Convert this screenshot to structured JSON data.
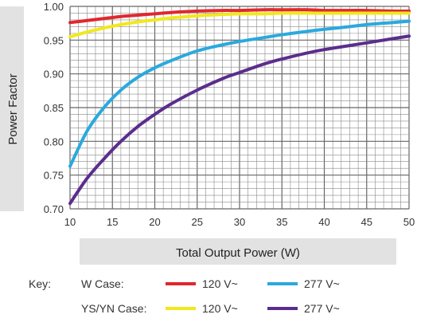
{
  "chart_data": {
    "type": "line",
    "title": "",
    "xlabel": "Total Output Power (W)",
    "ylabel": "Power Factor",
    "xlim": [
      10,
      50
    ],
    "ylim": [
      0.7,
      1.0
    ],
    "x_ticks": [
      "10",
      "15",
      "20",
      "25",
      "30",
      "35",
      "40",
      "45",
      "50"
    ],
    "y_ticks": [
      "1.00",
      "0.95",
      "0.90",
      "0.85",
      "0.80",
      "0.75",
      "0.70"
    ],
    "grid": true,
    "x": [
      10,
      12,
      14,
      16,
      18,
      20,
      22,
      25,
      28,
      30,
      33,
      35,
      38,
      40,
      43,
      45,
      48,
      50
    ],
    "series": [
      {
        "group": "W Case",
        "name": "120 V~",
        "color": "#e0282e",
        "values": [
          0.976,
          0.979,
          0.982,
          0.985,
          0.987,
          0.989,
          0.991,
          0.993,
          0.994,
          0.994,
          0.995,
          0.995,
          0.995,
          0.994,
          0.994,
          0.994,
          0.993,
          0.993
        ]
      },
      {
        "group": "W Case",
        "name": "277 V~",
        "color": "#2aa9de",
        "values": [
          0.763,
          0.815,
          0.85,
          0.876,
          0.895,
          0.909,
          0.92,
          0.934,
          0.943,
          0.948,
          0.954,
          0.958,
          0.963,
          0.966,
          0.97,
          0.973,
          0.976,
          0.978
        ]
      },
      {
        "group": "YS/YN Case",
        "name": "120 V~",
        "color": "#f2e81c",
        "values": [
          0.955,
          0.962,
          0.968,
          0.973,
          0.977,
          0.98,
          0.983,
          0.986,
          0.988,
          0.989,
          0.989,
          0.99,
          0.99,
          0.99,
          0.99,
          0.99,
          0.99,
          0.99
        ]
      },
      {
        "group": "YS/YN Case",
        "name": "277 V~",
        "color": "#5b2d8e",
        "values": [
          0.708,
          0.745,
          0.774,
          0.8,
          0.822,
          0.84,
          0.856,
          0.876,
          0.893,
          0.902,
          0.915,
          0.922,
          0.931,
          0.936,
          0.942,
          0.946,
          0.952,
          0.956
        ]
      }
    ],
    "legend": {
      "placement": "bottom",
      "key_label": "Key:",
      "groups": [
        "W Case:",
        "YS/YN Case:"
      ]
    }
  }
}
